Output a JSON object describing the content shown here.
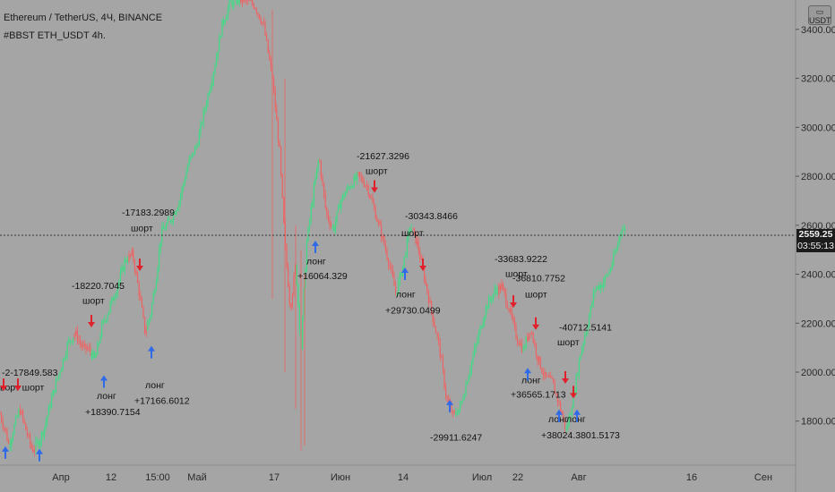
{
  "header": {
    "title": "Ethereum / TetherUS, 4Ч, BINANCE",
    "strategy": "#BBST ETH_USDT 4h."
  },
  "currency_badge": {
    "symbol": "▭",
    "label": "USDT"
  },
  "price_marker": {
    "price": "2559.25",
    "countdown": "03:55:13"
  },
  "colors": {
    "background": "#a5a5a5",
    "bull": "#3ddc84",
    "bear": "#f06262",
    "long_arrow": "#2f6be8",
    "short_arrow": "#e0202a",
    "price_box": "#1c1c1c"
  },
  "chart_data": {
    "type": "candlestick",
    "y_axis": {
      "ticks": [
        1800,
        2000,
        2200,
        2400,
        2600,
        2800,
        3000,
        3200,
        3400
      ],
      "labels": [
        "1800.00",
        "2000.00",
        "2200.00",
        "2400.00",
        "2600.00",
        "2800.00",
        "3000.00",
        "3200.00",
        "3400.00"
      ],
      "range": [
        1620,
        3520
      ]
    },
    "x_axis": {
      "labels": [
        "Апр",
        "12",
        "15:00",
        "Май",
        "17",
        "Июн",
        "14",
        "Июл",
        "22",
        "Авг",
        "16",
        "Сен"
      ]
    },
    "current_price": 2559.25,
    "price_path": [
      {
        "x": 0,
        "price": 1830
      },
      {
        "x": 6,
        "price": 1760
      },
      {
        "x": 10,
        "price": 1700
      },
      {
        "x": 16,
        "price": 1780
      },
      {
        "x": 22,
        "price": 1850
      },
      {
        "x": 30,
        "price": 1750
      },
      {
        "x": 36,
        "price": 1680
      },
      {
        "x": 44,
        "price": 1720
      },
      {
        "x": 50,
        "price": 1780
      },
      {
        "x": 56,
        "price": 1870
      },
      {
        "x": 62,
        "price": 1950
      },
      {
        "x": 68,
        "price": 2020
      },
      {
        "x": 76,
        "price": 2120
      },
      {
        "x": 84,
        "price": 2160
      },
      {
        "x": 92,
        "price": 2100
      },
      {
        "x": 100,
        "price": 2090
      },
      {
        "x": 106,
        "price": 2050
      },
      {
        "x": 114,
        "price": 2190
      },
      {
        "x": 122,
        "price": 2260
      },
      {
        "x": 130,
        "price": 2340
      },
      {
        "x": 140,
        "price": 2460
      },
      {
        "x": 148,
        "price": 2480
      },
      {
        "x": 156,
        "price": 2310
      },
      {
        "x": 162,
        "price": 2160
      },
      {
        "x": 168,
        "price": 2240
      },
      {
        "x": 174,
        "price": 2380
      },
      {
        "x": 180,
        "price": 2570
      },
      {
        "x": 190,
        "price": 2620
      },
      {
        "x": 200,
        "price": 2700
      },
      {
        "x": 210,
        "price": 2850
      },
      {
        "x": 220,
        "price": 2930
      },
      {
        "x": 230,
        "price": 3100
      },
      {
        "x": 240,
        "price": 3260
      },
      {
        "x": 248,
        "price": 3420
      },
      {
        "x": 256,
        "price": 3500
      },
      {
        "x": 262,
        "price": 3520
      },
      {
        "x": 272,
        "price": 3520
      },
      {
        "x": 284,
        "price": 3500
      },
      {
        "x": 294,
        "price": 3420
      },
      {
        "x": 304,
        "price": 3200
      },
      {
        "x": 312,
        "price": 2900
      },
      {
        "x": 318,
        "price": 2520
      },
      {
        "x": 324,
        "price": 2260
      },
      {
        "x": 330,
        "price": 2440
      },
      {
        "x": 336,
        "price": 2100
      },
      {
        "x": 342,
        "price": 2520
      },
      {
        "x": 350,
        "price": 2740
      },
      {
        "x": 356,
        "price": 2880
      },
      {
        "x": 364,
        "price": 2650
      },
      {
        "x": 372,
        "price": 2580
      },
      {
        "x": 380,
        "price": 2700
      },
      {
        "x": 390,
        "price": 2760
      },
      {
        "x": 400,
        "price": 2800
      },
      {
        "x": 410,
        "price": 2760
      },
      {
        "x": 418,
        "price": 2660
      },
      {
        "x": 426,
        "price": 2560
      },
      {
        "x": 434,
        "price": 2450
      },
      {
        "x": 442,
        "price": 2320
      },
      {
        "x": 450,
        "price": 2440
      },
      {
        "x": 458,
        "price": 2600
      },
      {
        "x": 466,
        "price": 2520
      },
      {
        "x": 474,
        "price": 2380
      },
      {
        "x": 482,
        "price": 2240
      },
      {
        "x": 490,
        "price": 2110
      },
      {
        "x": 498,
        "price": 1900
      },
      {
        "x": 506,
        "price": 1820
      },
      {
        "x": 514,
        "price": 1860
      },
      {
        "x": 522,
        "price": 1980
      },
      {
        "x": 532,
        "price": 2120
      },
      {
        "x": 542,
        "price": 2260
      },
      {
        "x": 552,
        "price": 2330
      },
      {
        "x": 560,
        "price": 2350
      },
      {
        "x": 568,
        "price": 2260
      },
      {
        "x": 576,
        "price": 2150
      },
      {
        "x": 584,
        "price": 2090
      },
      {
        "x": 592,
        "price": 2180
      },
      {
        "x": 600,
        "price": 2060
      },
      {
        "x": 608,
        "price": 1980
      },
      {
        "x": 616,
        "price": 1960
      },
      {
        "x": 624,
        "price": 1870
      },
      {
        "x": 632,
        "price": 1760
      },
      {
        "x": 640,
        "price": 1900
      },
      {
        "x": 648,
        "price": 2080
      },
      {
        "x": 656,
        "price": 2200
      },
      {
        "x": 664,
        "price": 2340
      },
      {
        "x": 672,
        "price": 2360
      },
      {
        "x": 680,
        "price": 2410
      },
      {
        "x": 688,
        "price": 2500
      },
      {
        "x": 694,
        "price": 2600
      },
      {
        "x": 698,
        "price": 2570
      }
    ],
    "annotations": [
      {
        "text": "-2-17849.583",
        "x": 2,
        "price": 1985,
        "kind": "pnl"
      },
      {
        "text": "ьорт шорт",
        "x": 0,
        "price": 1925,
        "kind": "label"
      },
      {
        "text": "-18220.7045",
        "x": 80,
        "price": 2340,
        "kind": "pnl"
      },
      {
        "text": "шорт",
        "x": 92,
        "price": 2280,
        "kind": "label"
      },
      {
        "text": "-17183.2989",
        "x": 136,
        "price": 2640,
        "kind": "pnl"
      },
      {
        "text": "шорт",
        "x": 146,
        "price": 2575,
        "kind": "label"
      },
      {
        "text": "лонг",
        "x": 108,
        "price": 1890,
        "kind": "label"
      },
      {
        "text": "+18390.7154",
        "x": 95,
        "price": 1825,
        "kind": "pnl"
      },
      {
        "text": "лонг",
        "x": 162,
        "price": 1935,
        "kind": "label"
      },
      {
        "text": "+17166.6012",
        "x": 150,
        "price": 1870,
        "kind": "pnl"
      },
      {
        "text": "-21627.3296",
        "x": 398,
        "price": 2870,
        "kind": "pnl"
      },
      {
        "text": "шорт",
        "x": 408,
        "price": 2810,
        "kind": "label"
      },
      {
        "text": "лонг",
        "x": 342,
        "price": 2440,
        "kind": "label"
      },
      {
        "text": "+16064.329",
        "x": 332,
        "price": 2380,
        "kind": "pnl"
      },
      {
        "text": "-30343.8466",
        "x": 452,
        "price": 2625,
        "kind": "pnl"
      },
      {
        "text": "шорт",
        "x": 448,
        "price": 2555,
        "kind": "label"
      },
      {
        "text": "лонг",
        "x": 442,
        "price": 2305,
        "kind": "label"
      },
      {
        "text": "+29730.0499",
        "x": 430,
        "price": 2240,
        "kind": "pnl"
      },
      {
        "text": "-33683.9222",
        "x": 552,
        "price": 2450,
        "kind": "pnl"
      },
      {
        "text": "шорт",
        "x": 564,
        "price": 2390,
        "kind": "label"
      },
      {
        "text": "-36810.7752",
        "x": 572,
        "price": 2370,
        "kind": "pnl"
      },
      {
        "text": "шорт",
        "x": 586,
        "price": 2305,
        "kind": "label"
      },
      {
        "text": "-29911.6247",
        "x": 480,
        "price": 1720,
        "kind": "pnl"
      },
      {
        "text": "лонг",
        "x": 582,
        "price": 1955,
        "kind": "label"
      },
      {
        "text": "+36565.1713",
        "x": 570,
        "price": 1895,
        "kind": "pnl"
      },
      {
        "text": "-40712.5141",
        "x": 624,
        "price": 2170,
        "kind": "pnl"
      },
      {
        "text": "шорт",
        "x": 622,
        "price": 2110,
        "kind": "label"
      },
      {
        "text": "лонг",
        "x": 612,
        "price": 1795,
        "kind": "label"
      },
      {
        "text": "лонг",
        "x": 632,
        "price": 1795,
        "kind": "label"
      },
      {
        "text": "+38024.3801.5173",
        "x": 604,
        "price": 1730,
        "kind": "pnl"
      }
    ],
    "signals": [
      {
        "dir": "short",
        "x": 4,
        "price": 1930
      },
      {
        "dir": "short",
        "x": 20,
        "price": 1930
      },
      {
        "dir": "long",
        "x": 6,
        "price": 1690
      },
      {
        "dir": "long",
        "x": 44,
        "price": 1680
      },
      {
        "dir": "short",
        "x": 102,
        "price": 2190
      },
      {
        "dir": "long",
        "x": 116,
        "price": 1980
      },
      {
        "dir": "short",
        "x": 156,
        "price": 2420
      },
      {
        "dir": "long",
        "x": 169,
        "price": 2100
      },
      {
        "dir": "long",
        "x": 352,
        "price": 2530
      },
      {
        "dir": "short",
        "x": 418,
        "price": 2740
      },
      {
        "dir": "short",
        "x": 472,
        "price": 2420
      },
      {
        "dir": "long",
        "x": 452,
        "price": 2420
      },
      {
        "dir": "long",
        "x": 502,
        "price": 1880
      },
      {
        "dir": "short",
        "x": 573,
        "price": 2270
      },
      {
        "dir": "short",
        "x": 598,
        "price": 2180
      },
      {
        "dir": "long",
        "x": 589,
        "price": 2010
      },
      {
        "dir": "short",
        "x": 631,
        "price": 1960
      },
      {
        "dir": "long",
        "x": 624,
        "price": 1840
      },
      {
        "dir": "short",
        "x": 640,
        "price": 1900
      },
      {
        "dir": "long",
        "x": 644,
        "price": 1840
      }
    ]
  }
}
